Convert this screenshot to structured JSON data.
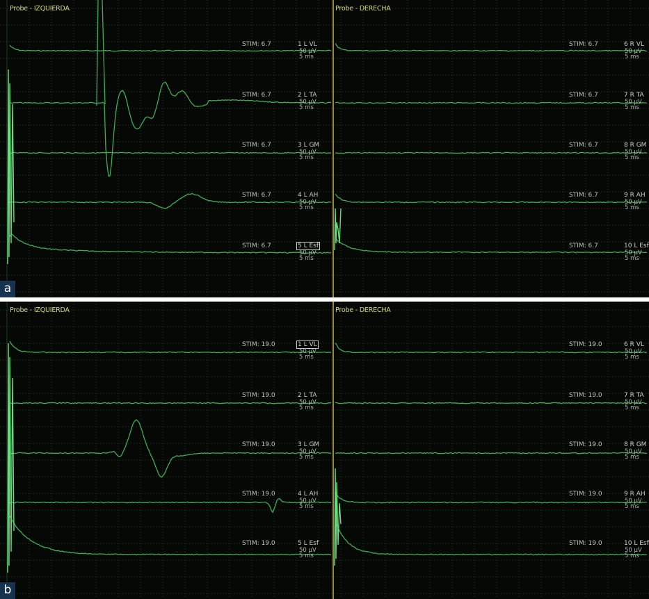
{
  "panels": [
    {
      "letter": "a",
      "left_title": "Probe - IZQUIERDA",
      "right_title": "Probe - DERECHA",
      "rows": [
        {
          "stim": "STIM: 6.7",
          "left_channel": "1 L VL",
          "right_channel": "6 R VL",
          "scale_amp": "50 µV",
          "scale_time": "5 ms"
        },
        {
          "stim": "STIM: 6.7",
          "left_channel": "2 L TA",
          "right_channel": "7 R TA",
          "scale_amp": "50 µV",
          "scale_time": "5 ms"
        },
        {
          "stim": "STIM: 6.7",
          "left_channel": "3 L GM",
          "right_channel": "8 R GM",
          "scale_amp": "50 µV",
          "scale_time": "5 ms"
        },
        {
          "stim": "STIM: 6.7",
          "left_channel": "4 L AH",
          "right_channel": "9 R AH",
          "scale_amp": "50 µV",
          "scale_time": "5 ms"
        },
        {
          "stim": "STIM: 6.7",
          "left_channel": "5 L Esf",
          "right_channel": "10 L Esf",
          "scale_amp": "50 µV",
          "scale_time": "5 ms"
        }
      ],
      "selected_row": 4
    },
    {
      "letter": "b",
      "left_title": "Probe - IZQUIERDA",
      "right_title": "Probe - DERECHA",
      "rows": [
        {
          "stim": "STIM: 19.0",
          "left_channel": "1 L VL",
          "right_channel": "6 R VL",
          "scale_amp": "50 µV",
          "scale_time": "5 ms"
        },
        {
          "stim": "STIM: 19.0",
          "left_channel": "2 L TA",
          "right_channel": "7 R TA",
          "scale_amp": "50 µV",
          "scale_time": "5 ms"
        },
        {
          "stim": "STIM: 19.0",
          "left_channel": "3 L GM",
          "right_channel": "8 R GM",
          "scale_amp": "50 µV",
          "scale_time": "5 ms"
        },
        {
          "stim": "STIM: 19.0",
          "left_channel": "4 L AH",
          "right_channel": "9 R AH",
          "scale_amp": "50 µV",
          "scale_time": "5 ms"
        },
        {
          "stim": "STIM: 19.0",
          "left_channel": "5 L Esf",
          "right_channel": "10 L Esf",
          "scale_amp": "50 µV",
          "scale_time": "5 ms"
        }
      ],
      "selected_row": 0
    }
  ],
  "colors": {
    "background": "#050805",
    "grid": "#2b3a2b",
    "trace": "#3fae55",
    "artifact": "#62e07a",
    "title_text": "#d9d77a",
    "divider": "#c9b84a",
    "separator": "#ffffff",
    "label_bg": "#16344f"
  }
}
